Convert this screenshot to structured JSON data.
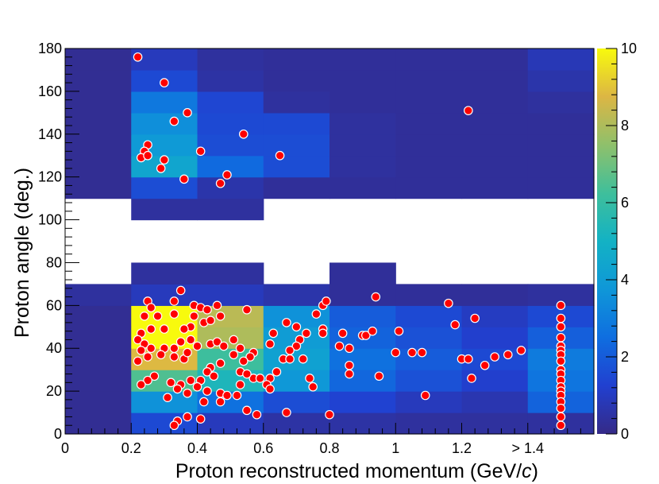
{
  "chart_data": {
    "type": "heatmap",
    "xlabel": "Proton reconstructed momentum (GeV/",
    "xlabel_italic": "c",
    "xlabel_close": ")",
    "ylabel": "Proton angle (deg.)",
    "xlim": [
      0,
      1.6
    ],
    "ylim": [
      0,
      180
    ],
    "zlim": [
      0,
      10
    ],
    "x_ticks": [
      {
        "value": 0,
        "label": "0"
      },
      {
        "value": 0.2,
        "label": "0.2"
      },
      {
        "value": 0.4,
        "label": "0.4"
      },
      {
        "value": 0.6,
        "label": "0.6"
      },
      {
        "value": 0.8,
        "label": "0.8"
      },
      {
        "value": 1.0,
        "label": "1"
      },
      {
        "value": 1.2,
        "label": "1.2"
      },
      {
        "value": 1.4,
        "label": "> 1.4"
      }
    ],
    "y_ticks": [
      0,
      20,
      40,
      60,
      80,
      100,
      120,
      140,
      160,
      180
    ],
    "z_ticks": [
      0,
      2,
      4,
      6,
      8,
      10
    ],
    "x_edges": [
      0,
      0.2,
      0.4,
      0.6,
      0.8,
      1.0,
      1.2,
      1.4,
      1.6
    ],
    "y_bins": [
      {
        "range": [
          0,
          10
        ],
        "z": [
          0.2,
          1.5,
          0.9,
          0.5,
          0.5,
          0.4,
          0.4,
          0.4
        ]
      },
      {
        "range": [
          10,
          20
        ],
        "z": [
          0.2,
          3.6,
          2.6,
          1.6,
          1.3,
          0.9,
          0.7,
          2.2
        ]
      },
      {
        "range": [
          20,
          30
        ],
        "z": [
          0.2,
          6.5,
          5.3,
          3.8,
          2.3,
          1.7,
          1.2,
          2.7
        ]
      },
      {
        "range": [
          30,
          40
        ],
        "z": [
          0.2,
          8.8,
          6.2,
          4.2,
          2.6,
          2.0,
          1.5,
          2.9
        ]
      },
      {
        "range": [
          40,
          50
        ],
        "z": [
          0.2,
          10.0,
          8.0,
          4.0,
          2.2,
          1.7,
          1.2,
          2.1
        ]
      },
      {
        "range": [
          50,
          60
        ],
        "z": [
          0.2,
          10.0,
          8.2,
          3.6,
          2.0,
          1.5,
          1.0,
          1.5
        ]
      },
      {
        "range": [
          60,
          70
        ],
        "z": [
          0.4,
          0.9,
          0.9,
          0.6,
          0.3,
          0.3,
          0.3,
          0.4
        ]
      },
      {
        "range": [
          70,
          80
        ],
        "z": [
          null,
          0.4,
          0.4,
          null,
          0.3,
          null,
          null,
          null
        ]
      },
      {
        "range": [
          80,
          100
        ],
        "z": [
          null,
          null,
          null,
          null,
          null,
          null,
          null,
          null
        ]
      },
      {
        "range": [
          100,
          110
        ],
        "z": [
          null,
          0.4,
          0.4,
          null,
          null,
          null,
          null,
          null
        ]
      },
      {
        "range": [
          110,
          120
        ],
        "z": [
          0.2,
          1.6,
          0.6,
          0.3,
          0.3,
          0.3,
          0.3,
          0.3
        ]
      },
      {
        "range": [
          120,
          130
        ],
        "z": [
          0.2,
          4.4,
          2.4,
          1.6,
          0.4,
          0.3,
          0.3,
          0.3
        ]
      },
      {
        "range": [
          130,
          140
        ],
        "z": [
          0.2,
          3.9,
          1.6,
          1.6,
          0.4,
          0.3,
          0.3,
          0.3
        ]
      },
      {
        "range": [
          140,
          150
        ],
        "z": [
          0.2,
          3.5,
          1.5,
          1.5,
          0.4,
          0.3,
          0.3,
          0.3
        ]
      },
      {
        "range": [
          150,
          160
        ],
        "z": [
          0.2,
          2.8,
          1.4,
          0.4,
          0.3,
          0.3,
          0.3,
          0.4
        ]
      },
      {
        "range": [
          160,
          170
        ],
        "z": [
          0.2,
          1.5,
          0.5,
          0.3,
          0.3,
          0.3,
          0.3,
          0.6
        ]
      },
      {
        "range": [
          170,
          180
        ],
        "z": [
          0.2,
          0.9,
          0.4,
          0.3,
          0.3,
          0.3,
          0.3,
          0.8
        ]
      }
    ],
    "points": [
      [
        0.22,
        176
      ],
      [
        0.3,
        164
      ],
      [
        0.37,
        150
      ],
      [
        0.33,
        146
      ],
      [
        0.54,
        140
      ],
      [
        1.22,
        151
      ],
      [
        0.25,
        135
      ],
      [
        0.24,
        132
      ],
      [
        0.23,
        129
      ],
      [
        0.25,
        130
      ],
      [
        0.3,
        128
      ],
      [
        0.29,
        124
      ],
      [
        0.36,
        119
      ],
      [
        0.41,
        132
      ],
      [
        0.49,
        121
      ],
      [
        0.47,
        117
      ],
      [
        0.65,
        130
      ],
      [
        0.35,
        67
      ],
      [
        0.25,
        62
      ],
      [
        0.33,
        62
      ],
      [
        0.39,
        60
      ],
      [
        0.41,
        59
      ],
      [
        0.46,
        60
      ],
      [
        0.43,
        58
      ],
      [
        0.55,
        58
      ],
      [
        0.26,
        59
      ],
      [
        0.24,
        55
      ],
      [
        0.28,
        55
      ],
      [
        0.33,
        56
      ],
      [
        0.39,
        55
      ],
      [
        0.42,
        52
      ],
      [
        0.44,
        53
      ],
      [
        0.47,
        55
      ],
      [
        0.38,
        50
      ],
      [
        0.36,
        49
      ],
      [
        0.3,
        49
      ],
      [
        0.26,
        49
      ],
      [
        0.23,
        47
      ],
      [
        0.22,
        44
      ],
      [
        0.24,
        42
      ],
      [
        0.23,
        39
      ],
      [
        0.26,
        40
      ],
      [
        0.3,
        40
      ],
      [
        0.33,
        40
      ],
      [
        0.35,
        43
      ],
      [
        0.38,
        44
      ],
      [
        0.4,
        41
      ],
      [
        0.44,
        42
      ],
      [
        0.46,
        43
      ],
      [
        0.48,
        41
      ],
      [
        0.51,
        44
      ],
      [
        0.53,
        40
      ],
      [
        0.57,
        38
      ],
      [
        0.56,
        36
      ],
      [
        0.54,
        34
      ],
      [
        0.51,
        37
      ],
      [
        0.47,
        33
      ],
      [
        0.44,
        31
      ],
      [
        0.43,
        29
      ],
      [
        0.45,
        27
      ],
      [
        0.41,
        25
      ],
      [
        0.38,
        25
      ],
      [
        0.35,
        23
      ],
      [
        0.32,
        24
      ],
      [
        0.27,
        27
      ],
      [
        0.25,
        25
      ],
      [
        0.23,
        23
      ],
      [
        0.22,
        34
      ],
      [
        0.25,
        36
      ],
      [
        0.29,
        37
      ],
      [
        0.33,
        36
      ],
      [
        0.36,
        35
      ],
      [
        0.37,
        38
      ],
      [
        0.34,
        21
      ],
      [
        0.37,
        19
      ],
      [
        0.4,
        22
      ],
      [
        0.43,
        20
      ],
      [
        0.47,
        19
      ],
      [
        0.49,
        18
      ],
      [
        0.52,
        18
      ],
      [
        0.31,
        17
      ],
      [
        0.42,
        15
      ],
      [
        0.47,
        15
      ],
      [
        0.53,
        29
      ],
      [
        0.57,
        26
      ],
      [
        0.59,
        26
      ],
      [
        0.55,
        28
      ],
      [
        0.53,
        23
      ],
      [
        0.55,
        11
      ],
      [
        0.58,
        9
      ],
      [
        0.34,
        6
      ],
      [
        0.33,
        4
      ],
      [
        0.37,
        8
      ],
      [
        0.41,
        7
      ],
      [
        0.62,
        42
      ],
      [
        0.63,
        47
      ],
      [
        0.67,
        52
      ],
      [
        0.7,
        50
      ],
      [
        0.71,
        44
      ],
      [
        0.73,
        47
      ],
      [
        0.76,
        56
      ],
      [
        0.78,
        60
      ],
      [
        0.79,
        62
      ],
      [
        0.78,
        49
      ],
      [
        0.78,
        47
      ],
      [
        0.83,
        41
      ],
      [
        0.84,
        47
      ],
      [
        0.86,
        40
      ],
      [
        0.9,
        46
      ],
      [
        0.91,
        46
      ],
      [
        0.93,
        48
      ],
      [
        0.94,
        64
      ],
      [
        0.7,
        41
      ],
      [
        0.68,
        39
      ],
      [
        0.66,
        35
      ],
      [
        0.68,
        35
      ],
      [
        0.72,
        35
      ],
      [
        0.74,
        26
      ],
      [
        0.75,
        22
      ],
      [
        0.62,
        26
      ],
      [
        0.61,
        23
      ],
      [
        0.62,
        21
      ],
      [
        0.64,
        29
      ],
      [
        0.67,
        10
      ],
      [
        0.8,
        9
      ],
      [
        0.86,
        32
      ],
      [
        0.86,
        28
      ],
      [
        0.95,
        27
      ],
      [
        1.0,
        38
      ],
      [
        1.01,
        48
      ],
      [
        1.05,
        38
      ],
      [
        1.08,
        38
      ],
      [
        1.09,
        18
      ],
      [
        1.16,
        61
      ],
      [
        1.18,
        51
      ],
      [
        1.2,
        35
      ],
      [
        1.22,
        35
      ],
      [
        1.23,
        26
      ],
      [
        1.24,
        54
      ],
      [
        1.27,
        32
      ],
      [
        1.3,
        36
      ],
      [
        1.34,
        37
      ],
      [
        1.38,
        39
      ],
      [
        1.5,
        60
      ],
      [
        1.5,
        54
      ],
      [
        1.5,
        50
      ],
      [
        1.5,
        45
      ],
      [
        1.5,
        41
      ],
      [
        1.5,
        39
      ],
      [
        1.5,
        37
      ],
      [
        1.5,
        34
      ],
      [
        1.5,
        30
      ],
      [
        1.5,
        28
      ],
      [
        1.5,
        25
      ],
      [
        1.5,
        22
      ],
      [
        1.5,
        20
      ],
      [
        1.5,
        18
      ],
      [
        1.5,
        15
      ],
      [
        1.5,
        12
      ],
      [
        1.5,
        8
      ],
      [
        1.5,
        4
      ]
    ],
    "point_color": "#ff0000",
    "point_edge_color": "#ffffff",
    "empty_color": "#ffffff",
    "colorbar_position": "right"
  }
}
